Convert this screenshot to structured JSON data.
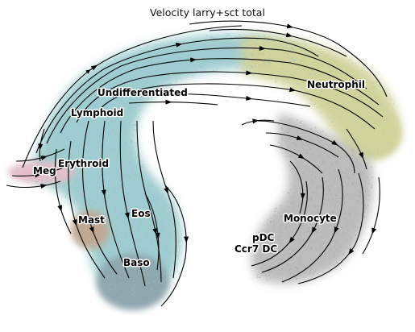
{
  "figure": {
    "title": "Velocity larry+sct total",
    "colors": {
      "arch_teal": "#8fc4c8",
      "arch_olive": "#c9cc8c",
      "neutrophil_cluster": "#c9cc8c",
      "monocyte_grey": "#a8a8a8",
      "erythroid_pink": "#e0b4c1",
      "mast_brown": "#b69b82",
      "baso_slate": "#7c98a2",
      "streamline": "#000000"
    },
    "labels": {
      "undifferentiated": "Undifferentiated",
      "neutrophil": "Neutrophil",
      "lymphoid": "Lymphoid",
      "erythroid": "Erythroid",
      "meg": "Meg",
      "mast": "Mast",
      "eos": "Eos",
      "baso": "Baso",
      "monocyte": "Monocyte",
      "pdc": "pDC",
      "ccr7dc": "Ccr7 DC"
    }
  }
}
